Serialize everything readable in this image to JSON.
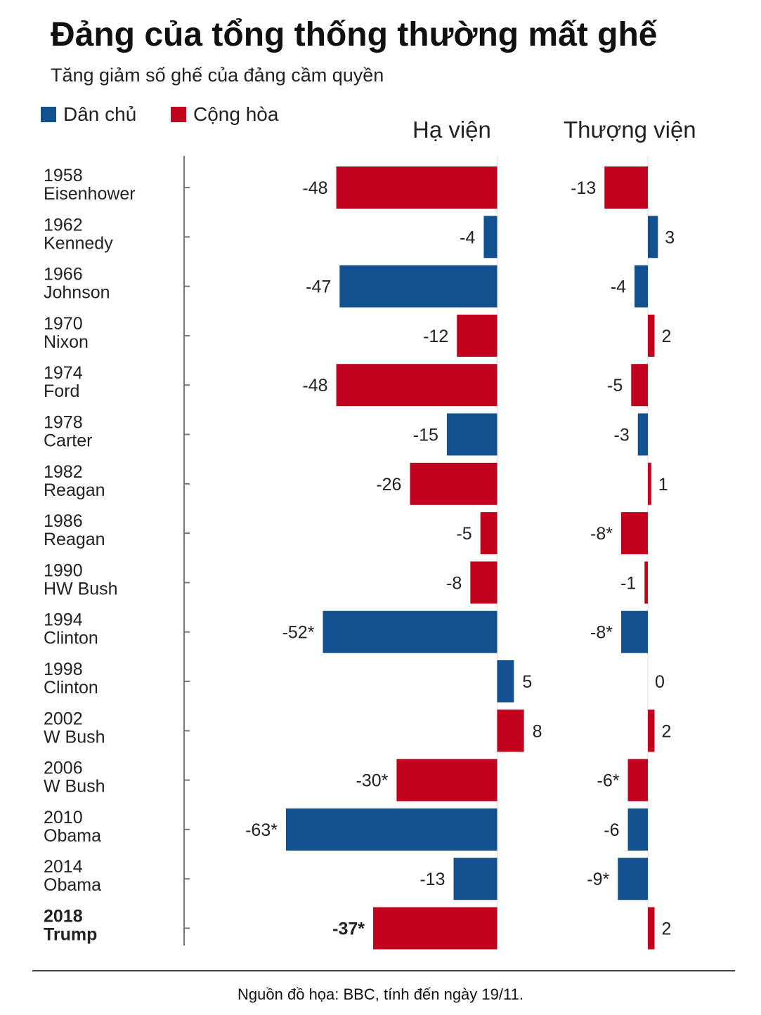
{
  "title": "Đảng của tổng thống thường mất ghế",
  "subtitle": "Tăng giảm số ghế của đảng cầm quyền",
  "legend": [
    {
      "label": "Dân chủ",
      "color": "#13508f"
    },
    {
      "label": "Cộng hòa",
      "color": "#c1001e"
    }
  ],
  "colors": {
    "dem": "#13508f",
    "rep": "#c1001e",
    "axis": "#777777"
  },
  "chart_data": {
    "type": "bar",
    "orientation": "horizontal",
    "panels": [
      {
        "title": "Hạ viện",
        "series_key": "house"
      },
      {
        "title": "Thượng viện",
        "series_key": "senate"
      }
    ],
    "categories": [
      {
        "year": "1958",
        "president": "Eisenhower",
        "party": "rep",
        "house": -48,
        "house_label": "-48",
        "senate": -13,
        "senate_label": "-13"
      },
      {
        "year": "1962",
        "president": "Kennedy",
        "party": "dem",
        "house": -4,
        "house_label": "-4",
        "senate": 3,
        "senate_label": "3"
      },
      {
        "year": "1966",
        "president": "Johnson",
        "party": "dem",
        "house": -47,
        "house_label": "-47",
        "senate": -4,
        "senate_label": "-4"
      },
      {
        "year": "1970",
        "president": "Nixon",
        "party": "rep",
        "house": -12,
        "house_label": "-12",
        "senate": 2,
        "senate_label": "2"
      },
      {
        "year": "1974",
        "president": "Ford",
        "party": "rep",
        "house": -48,
        "house_label": "-48",
        "senate": -5,
        "senate_label": "-5"
      },
      {
        "year": "1978",
        "president": "Carter",
        "party": "dem",
        "house": -15,
        "house_label": "-15",
        "senate": -3,
        "senate_label": "-3"
      },
      {
        "year": "1982",
        "president": "Reagan",
        "party": "rep",
        "house": -26,
        "house_label": "-26",
        "senate": 1,
        "senate_label": "1"
      },
      {
        "year": "1986",
        "president": "Reagan",
        "party": "rep",
        "house": -5,
        "house_label": "-5",
        "senate": -8,
        "senate_label": "-8*"
      },
      {
        "year": "1990",
        "president": "HW Bush",
        "party": "rep",
        "house": -8,
        "house_label": "-8",
        "senate": -1,
        "senate_label": "-1"
      },
      {
        "year": "1994",
        "president": "Clinton",
        "party": "dem",
        "house": -52,
        "house_label": "-52*",
        "senate": -8,
        "senate_label": "-8*"
      },
      {
        "year": "1998",
        "president": "Clinton",
        "party": "dem",
        "house": 5,
        "house_label": "5",
        "senate": 0,
        "senate_label": "0"
      },
      {
        "year": "2002",
        "president": "W Bush",
        "party": "rep",
        "house": 8,
        "house_label": "8",
        "senate": 2,
        "senate_label": "2"
      },
      {
        "year": "2006",
        "president": "W Bush",
        "party": "rep",
        "house": -30,
        "house_label": "-30*",
        "senate": -6,
        "senate_label": "-6*"
      },
      {
        "year": "2010",
        "president": "Obama",
        "party": "dem",
        "house": -63,
        "house_label": "-63*",
        "senate": -6,
        "senate_label": "-6"
      },
      {
        "year": "2014",
        "president": "Obama",
        "party": "dem",
        "house": -13,
        "house_label": "-13",
        "senate": -9,
        "senate_label": "-9*"
      },
      {
        "year": "2018",
        "president": "Trump",
        "party": "rep",
        "house": -37,
        "house_label": "-37*",
        "senate": 2,
        "senate_label": "2"
      }
    ]
  },
  "source": "Nguồn đồ họa: BBC, tính đến ngày 19/11."
}
